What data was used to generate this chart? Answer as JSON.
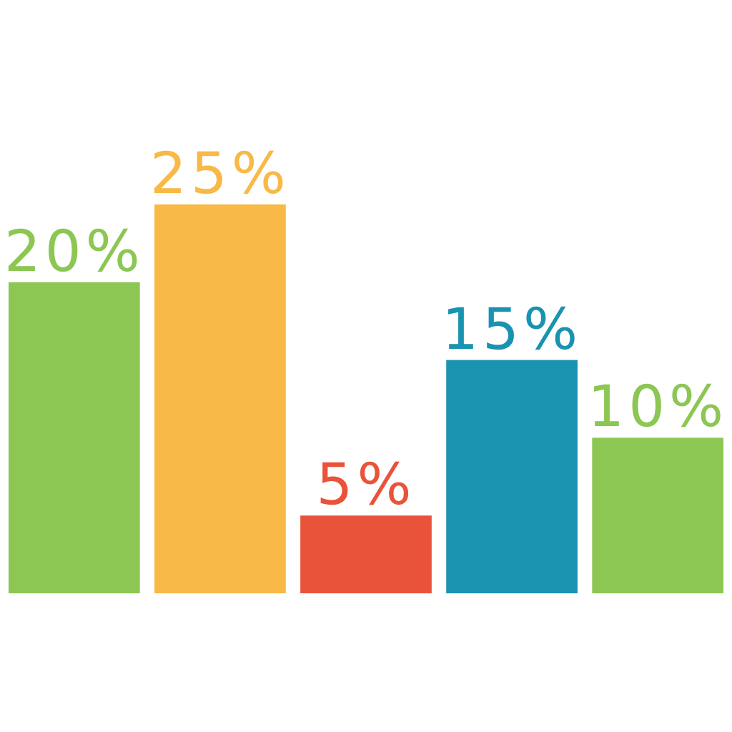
{
  "chart_data": {
    "type": "bar",
    "categories": [
      null,
      null,
      null,
      null,
      null
    ],
    "values": [
      20,
      25,
      5,
      15,
      10
    ],
    "colors": [
      "#8cc653",
      "#f8b946",
      "#e9533a",
      "#1993b0",
      "#8cc653"
    ],
    "value_labels": [
      "20%",
      "25%",
      "5%",
      "15%",
      "10%"
    ]
  }
}
